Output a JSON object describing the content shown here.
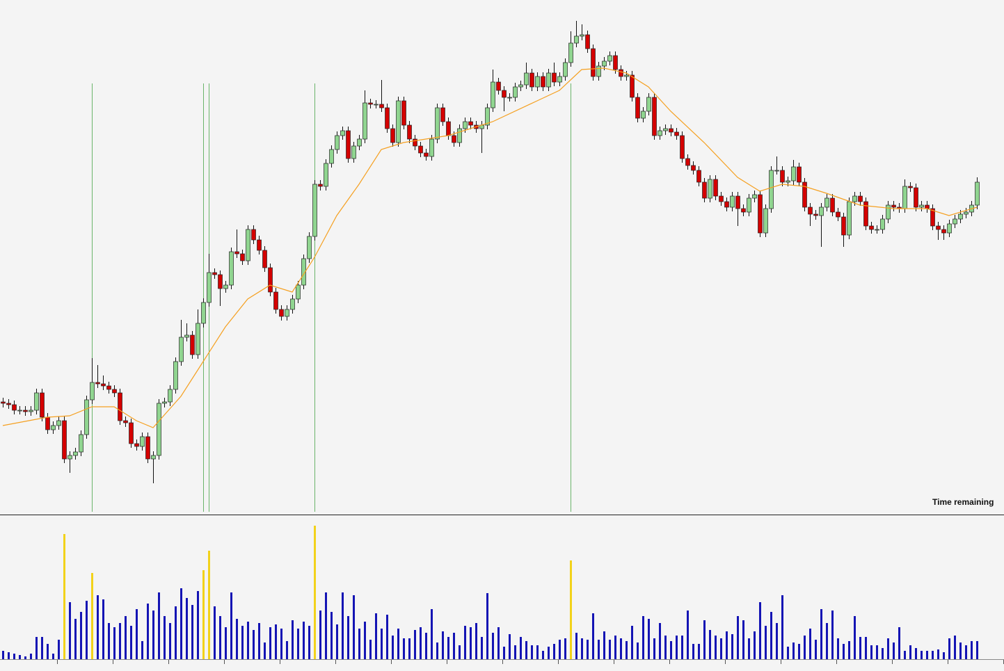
{
  "chart_data": [
    {
      "type": "candlestick",
      "xlim": [
        -0.5,
        179.875
      ],
      "ylim": [
        0,
        740
      ],
      "up_color": "#90d590",
      "down_color": "#d40000",
      "wick_color": "#111111",
      "open": [
        162,
        160,
        158,
        150,
        150,
        148,
        150,
        175,
        140,
        122,
        128,
        135,
        80,
        85,
        90,
        115,
        165,
        190,
        188,
        185,
        180,
        175,
        135,
        132,
        102,
        98,
        112,
        80,
        85,
        160,
        162,
        180,
        220,
        255,
        258,
        230,
        275,
        305,
        348,
        345,
        325,
        330,
        378,
        375,
        365,
        410,
        395,
        380,
        355,
        320,
        295,
        285,
        295,
        310,
        330,
        368,
        400,
        475,
        472,
        505,
        525,
        545,
        552,
        512,
        530,
        540,
        592,
        590,
        590,
        585,
        555,
        535,
        595,
        560,
        540,
        530,
        520,
        515,
        540,
        585,
        565,
        545,
        535,
        555,
        565,
        560,
        555,
        560,
        585,
        622,
        610,
        600,
        600,
        615,
        618,
        635,
        615,
        630,
        615,
        635,
        622,
        630,
        650,
        678,
        688,
        690,
        670,
        630,
        645,
        652,
        660,
        640,
        630,
        632,
        600,
        570,
        580,
        600,
        545,
        552,
        555,
        550,
        545,
        512,
        502,
        495,
        478,
        455,
        482,
        458,
        450,
        442,
        458,
        440,
        435,
        455,
        460,
        405,
        440,
        495,
        495,
        478,
        480,
        500,
        478,
        442,
        432,
        430,
        442,
        455,
        435,
        428,
        402,
        450,
        458,
        450,
        415,
        410,
        410,
        425,
        445,
        442,
        440,
        472,
        470,
        442,
        445,
        440,
        415,
        410,
        405,
        418,
        425,
        432,
        435,
        445
      ],
      "high": [
        168,
        166,
        164,
        156,
        156,
        156,
        181,
        181,
        146,
        134,
        141,
        141,
        91,
        96,
        121,
        171,
        225,
        215,
        200,
        191,
        186,
        181,
        141,
        138,
        108,
        118,
        118,
        91,
        166,
        168,
        186,
        226,
        280,
        275,
        264,
        295,
        311,
        375,
        354,
        351,
        336,
        384,
        410,
        381,
        416,
        416,
        401,
        386,
        361,
        326,
        301,
        301,
        316,
        336,
        374,
        406,
        481,
        481,
        511,
        531,
        551,
        558,
        558,
        536,
        546,
        610,
        598,
        596,
        625,
        591,
        561,
        601,
        601,
        566,
        546,
        536,
        526,
        546,
        591,
        591,
        571,
        551,
        561,
        571,
        571,
        566,
        566,
        591,
        640,
        628,
        616,
        606,
        621,
        624,
        650,
        641,
        636,
        636,
        641,
        650,
        636,
        656,
        695,
        710,
        705,
        696,
        676,
        651,
        658,
        666,
        666,
        646,
        638,
        638,
        606,
        586,
        606,
        606,
        558,
        561,
        561,
        556,
        551,
        518,
        508,
        501,
        484,
        488,
        488,
        464,
        456,
        464,
        464,
        446,
        461,
        466,
        466,
        446,
        501,
        515,
        501,
        486,
        510,
        506,
        484,
        448,
        438,
        448,
        461,
        461,
        441,
        434,
        456,
        464,
        464,
        456,
        421,
        416,
        431,
        451,
        451,
        448,
        482,
        478,
        476,
        451,
        451,
        446,
        421,
        416,
        424,
        431,
        438,
        441,
        451,
        485
      ],
      "low": [
        154,
        152,
        144,
        144,
        142,
        142,
        144,
        134,
        116,
        116,
        122,
        74,
        60,
        79,
        84,
        109,
        159,
        182,
        179,
        174,
        169,
        129,
        126,
        96,
        92,
        92,
        74,
        45,
        79,
        154,
        156,
        174,
        214,
        249,
        224,
        224,
        269,
        299,
        339,
        300,
        319,
        324,
        369,
        359,
        359,
        389,
        374,
        349,
        314,
        289,
        279,
        279,
        289,
        304,
        324,
        362,
        394,
        466,
        466,
        499,
        519,
        539,
        506,
        506,
        524,
        534,
        584,
        584,
        579,
        549,
        529,
        529,
        554,
        534,
        524,
        514,
        509,
        509,
        534,
        559,
        539,
        529,
        529,
        549,
        554,
        549,
        520,
        554,
        579,
        604,
        580,
        594,
        594,
        609,
        612,
        609,
        609,
        609,
        609,
        616,
        616,
        624,
        644,
        672,
        682,
        664,
        624,
        624,
        639,
        646,
        634,
        624,
        624,
        594,
        564,
        564,
        574,
        539,
        539,
        546,
        544,
        539,
        506,
        496,
        489,
        472,
        449,
        449,
        452,
        444,
        436,
        436,
        415,
        429,
        429,
        449,
        399,
        399,
        434,
        489,
        472,
        472,
        474,
        472,
        436,
        415,
        424,
        385,
        436,
        429,
        422,
        385,
        396,
        444,
        444,
        409,
        404,
        404,
        404,
        419,
        436,
        434,
        434,
        464,
        436,
        436,
        434,
        409,
        395,
        395,
        399,
        412,
        419,
        426,
        429,
        439
      ],
      "close": [
        160,
        158,
        150,
        150,
        148,
        150,
        175,
        140,
        122,
        128,
        135,
        80,
        85,
        90,
        115,
        165,
        190,
        188,
        185,
        180,
        175,
        135,
        132,
        102,
        98,
        112,
        80,
        85,
        160,
        162,
        180,
        220,
        255,
        258,
        230,
        275,
        305,
        348,
        345,
        325,
        330,
        378,
        375,
        365,
        410,
        395,
        380,
        355,
        320,
        295,
        285,
        295,
        310,
        330,
        368,
        400,
        475,
        472,
        505,
        525,
        545,
        552,
        512,
        530,
        540,
        592,
        590,
        590,
        585,
        555,
        535,
        595,
        560,
        540,
        530,
        520,
        515,
        540,
        585,
        565,
        545,
        535,
        555,
        565,
        560,
        555,
        560,
        585,
        622,
        610,
        600,
        600,
        615,
        618,
        635,
        615,
        630,
        615,
        635,
        622,
        630,
        650,
        678,
        688,
        690,
        670,
        630,
        645,
        652,
        660,
        640,
        630,
        632,
        600,
        570,
        580,
        600,
        545,
        552,
        555,
        550,
        545,
        512,
        502,
        495,
        478,
        455,
        482,
        458,
        450,
        442,
        458,
        440,
        435,
        455,
        460,
        405,
        440,
        495,
        495,
        478,
        480,
        500,
        478,
        442,
        432,
        430,
        442,
        455,
        435,
        428,
        402,
        450,
        458,
        450,
        415,
        410,
        410,
        425,
        445,
        442,
        440,
        472,
        470,
        442,
        445,
        440,
        415,
        410,
        405,
        418,
        425,
        432,
        435,
        445,
        478
      ],
      "ma_color": "#f5a020",
      "ma_x": [
        0,
        8,
        12,
        16,
        20,
        24,
        27,
        32,
        36,
        40,
        44,
        48,
        52,
        56,
        60,
        64,
        68,
        72,
        80,
        88,
        96,
        100,
        104,
        108,
        112,
        116,
        120,
        126,
        132,
        136,
        140,
        144,
        148,
        154,
        160,
        166,
        170,
        175
      ],
      "ma_values": [
        128,
        140,
        142,
        155,
        155,
        135,
        125,
        170,
        220,
        270,
        310,
        330,
        320,
        370,
        430,
        475,
        525,
        535,
        545,
        565,
        595,
        610,
        640,
        642,
        635,
        615,
        580,
        535,
        485,
        465,
        475,
        472,
        462,
        445,
        440,
        440,
        430,
        442
      ],
      "signal_color": "#6ab46a",
      "signal_x": [
        16,
        36,
        37,
        56,
        102
      ],
      "annotation": "Time remaining"
    },
    {
      "type": "bar",
      "xlim": [
        -0.5,
        179.875
      ],
      "ylim": [
        0,
        200
      ],
      "color": "#1414b4",
      "highlight_color": "#f2d21a",
      "highlight": [
        11,
        16,
        36,
        37,
        56,
        102
      ],
      "values": [
        12,
        10,
        8,
        6,
        4,
        8,
        32,
        32,
        22,
        8,
        28,
        180,
        82,
        58,
        68,
        84,
        124,
        92,
        86,
        52,
        46,
        52,
        62,
        48,
        72,
        26,
        80,
        70,
        96,
        62,
        52,
        76,
        102,
        88,
        78,
        98,
        128,
        156,
        76,
        62,
        46,
        96,
        58,
        48,
        54,
        42,
        52,
        24,
        46,
        50,
        44,
        26,
        56,
        44,
        54,
        48,
        192,
        70,
        96,
        68,
        50,
        96,
        62,
        92,
        44,
        54,
        28,
        66,
        44,
        64,
        34,
        44,
        30,
        30,
        42,
        46,
        38,
        72,
        24,
        40,
        32,
        38,
        20,
        48,
        46,
        52,
        32,
        95,
        38,
        46,
        18,
        36,
        20,
        32,
        26,
        20,
        20,
        12,
        18,
        22,
        28,
        30,
        142,
        38,
        30,
        28,
        66,
        28,
        40,
        28,
        34,
        30,
        26,
        48,
        24,
        62,
        58,
        30,
        52,
        34,
        26,
        34,
        34,
        70,
        22,
        22,
        56,
        42,
        34,
        30,
        40,
        36,
        62,
        56,
        30,
        40,
        82,
        48,
        68,
        52,
        92,
        18,
        24,
        22,
        34,
        44,
        28,
        72,
        52,
        70,
        30,
        22,
        26,
        62,
        32,
        32,
        20,
        20,
        16,
        30,
        24,
        46,
        12,
        20,
        16,
        12,
        12,
        12,
        14,
        10,
        30,
        34,
        24,
        20,
        26,
        26
      ]
    }
  ]
}
